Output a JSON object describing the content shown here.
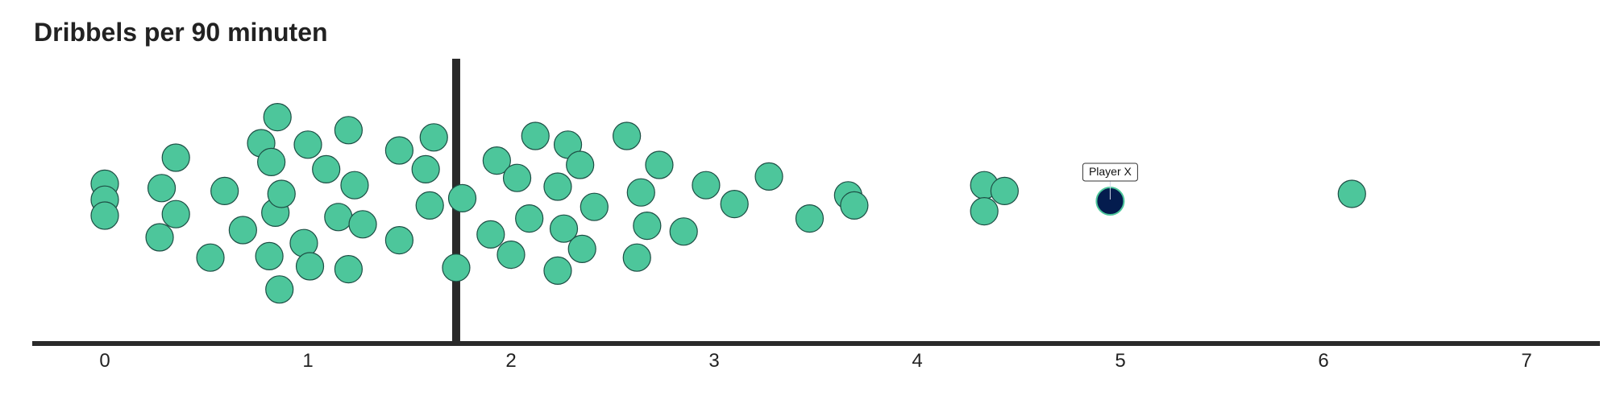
{
  "chart_data": {
    "type": "scatter",
    "title": "Dribbels per 90 minuten",
    "xlabel": "",
    "ylabel": "",
    "xlim": [
      -0.35,
      7.35
    ],
    "ylim": [
      -1,
      1
    ],
    "x_ticks": [
      0,
      1,
      2,
      3,
      4,
      5,
      6,
      7
    ],
    "grid": false,
    "legend": "none",
    "reference_line": {
      "x": 1.73
    },
    "colors": {
      "points": "#4dc69b",
      "point_edge": "#1d4e44",
      "highlight": "#041c4e",
      "highlight_edge": "#4dc69b",
      "axis": "#2a2a2a"
    },
    "points": [
      {
        "x": 0.0,
        "y": 0.12
      },
      {
        "x": 0.0,
        "y": 0.01
      },
      {
        "x": 0.0,
        "y": -0.1
      },
      {
        "x": 0.28,
        "y": 0.09
      },
      {
        "x": 0.27,
        "y": -0.25
      },
      {
        "x": 0.35,
        "y": 0.3
      },
      {
        "x": 0.35,
        "y": -0.09
      },
      {
        "x": 0.52,
        "y": -0.39
      },
      {
        "x": 0.59,
        "y": 0.07
      },
      {
        "x": 0.68,
        "y": -0.2
      },
      {
        "x": 0.77,
        "y": 0.4
      },
      {
        "x": 0.82,
        "y": 0.27
      },
      {
        "x": 0.85,
        "y": 0.58
      },
      {
        "x": 0.84,
        "y": -0.08
      },
      {
        "x": 0.87,
        "y": 0.05
      },
      {
        "x": 0.81,
        "y": -0.38
      },
      {
        "x": 0.86,
        "y": -0.61
      },
      {
        "x": 0.98,
        "y": -0.29
      },
      {
        "x": 1.0,
        "y": 0.39
      },
      {
        "x": 1.01,
        "y": -0.45
      },
      {
        "x": 1.09,
        "y": 0.22
      },
      {
        "x": 1.15,
        "y": -0.11
      },
      {
        "x": 1.2,
        "y": 0.49
      },
      {
        "x": 1.2,
        "y": -0.47
      },
      {
        "x": 1.23,
        "y": 0.11
      },
      {
        "x": 1.27,
        "y": -0.16
      },
      {
        "x": 1.45,
        "y": 0.35
      },
      {
        "x": 1.45,
        "y": -0.27
      },
      {
        "x": 1.58,
        "y": 0.22
      },
      {
        "x": 1.6,
        "y": -0.03
      },
      {
        "x": 1.62,
        "y": 0.44
      },
      {
        "x": 1.73,
        "y": -0.46
      },
      {
        "x": 1.76,
        "y": 0.02
      },
      {
        "x": 1.93,
        "y": 0.28
      },
      {
        "x": 1.9,
        "y": -0.23
      },
      {
        "x": 2.0,
        "y": -0.37
      },
      {
        "x": 2.03,
        "y": 0.16
      },
      {
        "x": 2.09,
        "y": -0.12
      },
      {
        "x": 2.12,
        "y": 0.45
      },
      {
        "x": 2.23,
        "y": 0.1
      },
      {
        "x": 2.23,
        "y": -0.48
      },
      {
        "x": 2.26,
        "y": -0.19
      },
      {
        "x": 2.28,
        "y": 0.39
      },
      {
        "x": 2.34,
        "y": 0.25
      },
      {
        "x": 2.35,
        "y": -0.33
      },
      {
        "x": 2.41,
        "y": -0.04
      },
      {
        "x": 2.57,
        "y": 0.45
      },
      {
        "x": 2.62,
        "y": -0.39
      },
      {
        "x": 2.64,
        "y": 0.06
      },
      {
        "x": 2.67,
        "y": -0.17
      },
      {
        "x": 2.73,
        "y": 0.25
      },
      {
        "x": 2.85,
        "y": -0.21
      },
      {
        "x": 2.96,
        "y": 0.11
      },
      {
        "x": 3.1,
        "y": -0.02
      },
      {
        "x": 3.27,
        "y": 0.17
      },
      {
        "x": 3.47,
        "y": -0.12
      },
      {
        "x": 3.66,
        "y": 0.04
      },
      {
        "x": 3.69,
        "y": -0.03
      },
      {
        "x": 4.33,
        "y": 0.11
      },
      {
        "x": 4.33,
        "y": -0.07
      },
      {
        "x": 4.43,
        "y": 0.07
      },
      {
        "x": 6.14,
        "y": 0.05
      }
    ],
    "highlight": {
      "label": "Player X",
      "x": 4.95,
      "y": 0.0
    }
  }
}
